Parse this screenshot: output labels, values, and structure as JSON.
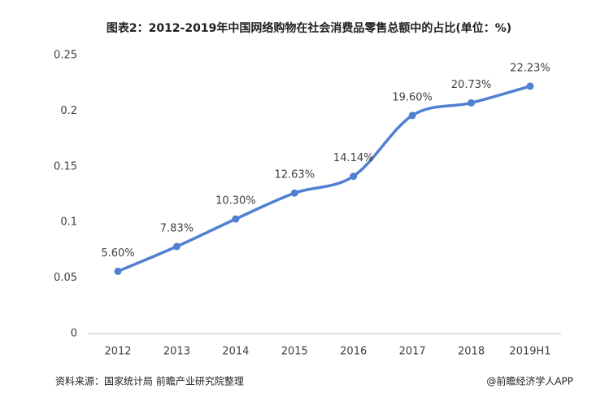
{
  "chart_data": {
    "type": "line",
    "title": "图表2：2012-2019年中国网络购物在社会消费品零售总额中的占比(单位：%)",
    "categories": [
      "2012",
      "2013",
      "2014",
      "2015",
      "2016",
      "2017",
      "2018",
      "2019H1"
    ],
    "values": [
      0.056,
      0.0783,
      0.103,
      0.1263,
      0.1414,
      0.196,
      0.2073,
      0.2223
    ],
    "value_labels": [
      "5.60%",
      "7.83%",
      "10.30%",
      "12.63%",
      "14.14%",
      "19.60%",
      "20.73%",
      "22.23%"
    ],
    "color": "#4f81d0",
    "ylim": [
      0,
      0.25
    ],
    "yticks": [
      0,
      0.05,
      0.1,
      0.15,
      0.2,
      0.25
    ],
    "source": "资料来源：国家统计局 前瞻产业研究院整理",
    "credit": "@前瞻经济学人APP"
  }
}
